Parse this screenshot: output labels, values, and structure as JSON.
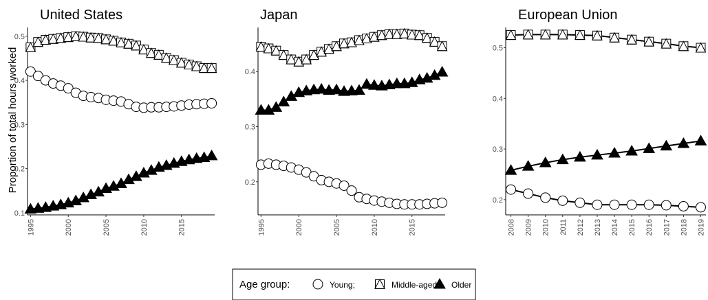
{
  "y_axis_label": "Proportion of total hours worked",
  "legend": {
    "title": "Age group:",
    "items": [
      {
        "label": "Young;",
        "shape": "circle"
      },
      {
        "label": "Middle-aged;",
        "shape": "square-triangle"
      },
      {
        "label": "Older",
        "shape": "filled-triangle"
      }
    ]
  },
  "chart_data": [
    {
      "type": "line",
      "title": "United States",
      "ylim": [
        0.095,
        0.52
      ],
      "yticks": [
        0.1,
        0.2,
        0.3,
        0.4,
        0.5
      ],
      "xlim": [
        1994.6,
        2019.4
      ],
      "xticks": [
        1995,
        2000,
        2005,
        2010,
        2015
      ],
      "x": [
        1995,
        1996,
        1997,
        1998,
        1999,
        2000,
        2001,
        2002,
        2003,
        2004,
        2005,
        2006,
        2007,
        2008,
        2009,
        2010,
        2011,
        2012,
        2013,
        2014,
        2015,
        2016,
        2017,
        2018,
        2019
      ],
      "series": [
        {
          "name": "Young",
          "shape": "circle",
          "values": [
            0.42,
            0.41,
            0.4,
            0.393,
            0.388,
            0.382,
            0.372,
            0.365,
            0.362,
            0.36,
            0.356,
            0.354,
            0.352,
            0.346,
            0.34,
            0.338,
            0.339,
            0.339,
            0.34,
            0.341,
            0.343,
            0.345,
            0.346,
            0.347,
            0.348
          ]
        },
        {
          "name": "Middle-aged",
          "shape": "square-triangle",
          "values": [
            0.475,
            0.487,
            0.492,
            0.494,
            0.496,
            0.498,
            0.5,
            0.499,
            0.497,
            0.496,
            0.493,
            0.49,
            0.486,
            0.483,
            0.479,
            0.47,
            0.462,
            0.458,
            0.451,
            0.446,
            0.44,
            0.436,
            0.432,
            0.428,
            0.428
          ]
        },
        {
          "name": "Older",
          "shape": "filled-triangle",
          "values": [
            0.108,
            0.11,
            0.112,
            0.115,
            0.118,
            0.122,
            0.127,
            0.134,
            0.141,
            0.147,
            0.155,
            0.16,
            0.166,
            0.175,
            0.182,
            0.19,
            0.196,
            0.203,
            0.207,
            0.212,
            0.216,
            0.22,
            0.223,
            0.225,
            0.229
          ]
        }
      ]
    },
    {
      "type": "line",
      "title": "Japan",
      "ylim": [
        0.14,
        0.48
      ],
      "yticks": [
        0.2,
        0.3,
        0.4
      ],
      "xlim": [
        1994.6,
        2019.4
      ],
      "xticks": [
        1995,
        2000,
        2005,
        2010,
        2015
      ],
      "x": [
        1995,
        1996,
        1997,
        1998,
        1999,
        2000,
        2001,
        2002,
        2003,
        2004,
        2005,
        2006,
        2007,
        2008,
        2009,
        2010,
        2011,
        2012,
        2013,
        2014,
        2015,
        2016,
        2017,
        2018,
        2019
      ],
      "series": [
        {
          "name": "Young",
          "shape": "circle",
          "values": [
            0.231,
            0.233,
            0.231,
            0.229,
            0.226,
            0.222,
            0.217,
            0.21,
            0.203,
            0.2,
            0.197,
            0.193,
            0.184,
            0.172,
            0.169,
            0.166,
            0.164,
            0.162,
            0.16,
            0.159,
            0.159,
            0.159,
            0.16,
            0.161,
            0.162
          ]
        },
        {
          "name": "Middle-aged",
          "shape": "square-triangle",
          "values": [
            0.445,
            0.442,
            0.438,
            0.43,
            0.422,
            0.418,
            0.422,
            0.43,
            0.436,
            0.441,
            0.446,
            0.451,
            0.453,
            0.457,
            0.46,
            0.463,
            0.466,
            0.468,
            0.468,
            0.469,
            0.467,
            0.466,
            0.461,
            0.454,
            0.446
          ]
        },
        {
          "name": "Older",
          "shape": "filled-triangle",
          "values": [
            0.33,
            0.33,
            0.335,
            0.345,
            0.355,
            0.362,
            0.365,
            0.367,
            0.368,
            0.366,
            0.367,
            0.364,
            0.365,
            0.366,
            0.377,
            0.375,
            0.374,
            0.376,
            0.378,
            0.378,
            0.38,
            0.385,
            0.388,
            0.393,
            0.399
          ]
        }
      ]
    },
    {
      "type": "line",
      "title": "European Union",
      "ylim": [
        0.17,
        0.54
      ],
      "yticks": [
        0.2,
        0.3,
        0.4,
        0.5
      ],
      "xlim": [
        2007.7,
        2019.3
      ],
      "xticks": [
        2008,
        2009,
        2010,
        2011,
        2012,
        2013,
        2014,
        2015,
        2016,
        2017,
        2018,
        2019
      ],
      "x": [
        2008,
        2009,
        2010,
        2011,
        2012,
        2013,
        2014,
        2015,
        2016,
        2017,
        2018,
        2019
      ],
      "series": [
        {
          "name": "Young",
          "shape": "circle",
          "values": [
            0.22,
            0.212,
            0.204,
            0.198,
            0.194,
            0.19,
            0.19,
            0.19,
            0.19,
            0.189,
            0.187,
            0.185
          ]
        },
        {
          "name": "Middle-aged",
          "shape": "square-triangle",
          "values": [
            0.525,
            0.526,
            0.526,
            0.526,
            0.525,
            0.524,
            0.52,
            0.516,
            0.512,
            0.508,
            0.503,
            0.5
          ]
        },
        {
          "name": "Older",
          "shape": "filled-triangle",
          "values": [
            0.258,
            0.266,
            0.273,
            0.279,
            0.284,
            0.288,
            0.292,
            0.296,
            0.301,
            0.306,
            0.311,
            0.316
          ]
        }
      ]
    }
  ]
}
